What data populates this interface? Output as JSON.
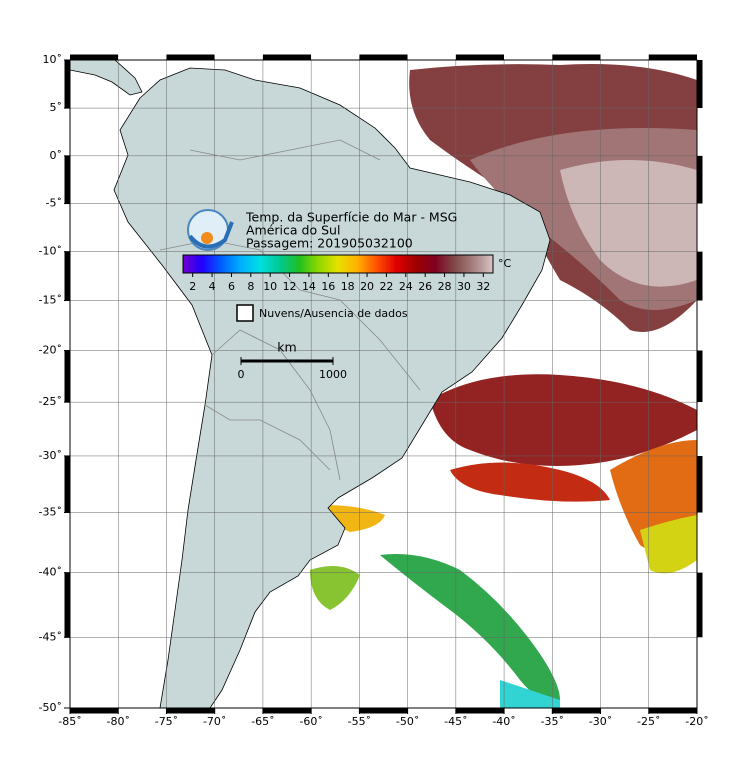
{
  "map": {
    "xlim": [
      -85,
      -20
    ],
    "ylim": [
      -50,
      10
    ],
    "grid": true,
    "xticks": [
      {
        "value": -85,
        "label": "-85˚"
      },
      {
        "value": -80,
        "label": "-80˚"
      },
      {
        "value": -75,
        "label": "-75˚"
      },
      {
        "value": -70,
        "label": "-70˚"
      },
      {
        "value": -65,
        "label": "-65˚"
      },
      {
        "value": -60,
        "label": "-60˚"
      },
      {
        "value": -55,
        "label": "-55˚"
      },
      {
        "value": -50,
        "label": "-50˚"
      },
      {
        "value": -45,
        "label": "-45˚"
      },
      {
        "value": -40,
        "label": "-40˚"
      },
      {
        "value": -35,
        "label": "-35˚"
      },
      {
        "value": -30,
        "label": "-30˚"
      },
      {
        "value": -25,
        "label": "-25˚"
      },
      {
        "value": -20,
        "label": "-20˚"
      }
    ],
    "yticks": [
      {
        "value": 10,
        "label": "10˚"
      },
      {
        "value": 5,
        "label": "5˚"
      },
      {
        "value": 0,
        "label": "0˚"
      },
      {
        "value": -5,
        "label": "-5˚"
      },
      {
        "value": -10,
        "label": "-10˚"
      },
      {
        "value": -15,
        "label": "-15˚"
      },
      {
        "value": -20,
        "label": "-20˚"
      },
      {
        "value": -25,
        "label": "-25˚"
      },
      {
        "value": -30,
        "label": "-30˚"
      },
      {
        "value": -35,
        "label": "-35˚"
      },
      {
        "value": -40,
        "label": "-40˚"
      },
      {
        "value": -45,
        "label": "-45˚"
      },
      {
        "value": -50,
        "label": "-50˚"
      }
    ],
    "title_lines": [
      "Temp. da Superfície do Mar - MSG",
      "América do Sul",
      "Passagem: 201905032100"
    ]
  },
  "colorbar": {
    "unit": "°C",
    "lim": [
      1,
      33
    ],
    "ticks": [
      2,
      4,
      6,
      8,
      10,
      12,
      14,
      16,
      18,
      20,
      22,
      24,
      26,
      28,
      30,
      32
    ],
    "colors": [
      "#7000d0",
      "#2000ff",
      "#0060ff",
      "#00b0ff",
      "#00e0e0",
      "#00c890",
      "#20c020",
      "#90d800",
      "#e8e000",
      "#ffb000",
      "#ff5000",
      "#e00000",
      "#a00000",
      "#800020",
      "#804848",
      "#a88080",
      "#d8c4c4"
    ]
  },
  "legend": {
    "label": "Nuvens/Ausencia de dados"
  },
  "scale": {
    "unit": "km",
    "ticks": [
      0,
      1000
    ]
  }
}
